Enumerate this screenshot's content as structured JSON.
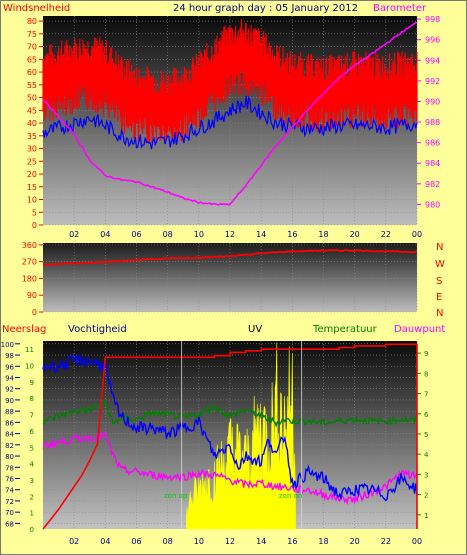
{
  "header": {
    "title": "24 hour graph day : 05 January 2012",
    "left_label": "Windsnelheid",
    "right_label": "Barometer"
  },
  "wind_dir_labels": [
    "N",
    "W",
    "S",
    "E",
    "N"
  ],
  "bottom_labels": {
    "rain": "Neerslag",
    "humidity": "Vochtigheid",
    "uv": "UV",
    "temperature": "Temperatuur",
    "dewpoint": "Dauwpunt"
  },
  "annotations": {
    "zon_op": "zon op",
    "zon_on": "zon on"
  },
  "colors": {
    "background": "#ffff99",
    "wind": "#ff0000",
    "gust": "#ff0000",
    "avg_wind": "#0000ff",
    "barometer": "#ff00ff",
    "wind_dir": "#ff0000",
    "rain": "#ff0000",
    "humidity": "#0000ff",
    "uv": "#ffff00",
    "temperature": "#008000",
    "dewpoint": "#ff00ff",
    "title": "#000080",
    "rain_label": "#ff0000"
  },
  "chart_data": [
    {
      "type": "line",
      "title": "24 hour graph day : 05 January 2012",
      "x_ticks": [
        "02",
        "04",
        "06",
        "08",
        "10",
        "12",
        "14",
        "16",
        "18",
        "20",
        "22",
        "00"
      ],
      "y_left_label": "Windsnelheid",
      "y_right_label": "Barometer",
      "y_left_ticks": [
        0,
        5,
        10,
        15,
        20,
        25,
        30,
        35,
        40,
        45,
        50,
        55,
        60,
        65,
        70,
        75,
        80
      ],
      "y_left_range": [
        0,
        82
      ],
      "y_right_ticks": [
        980,
        982,
        984,
        986,
        988,
        990,
        992,
        994,
        996,
        998
      ],
      "y_right_range": [
        978,
        998.3
      ],
      "grid": true,
      "series": [
        {
          "axis": "left",
          "x": [
            0,
            1,
            2,
            3,
            4,
            5,
            6,
            7,
            8,
            9,
            10,
            11,
            12,
            13,
            14,
            15,
            16,
            17,
            18,
            19,
            20,
            21,
            22,
            23,
            24
          ],
          "values": [
            55,
            57,
            59,
            60,
            58,
            52,
            48,
            47,
            46,
            48,
            53,
            59,
            65,
            66,
            62,
            56,
            53,
            52,
            51,
            52,
            53,
            53,
            52,
            53,
            54
          ]
        },
        {
          "axis": "left",
          "x": [
            0,
            1,
            2,
            3,
            4,
            5,
            6,
            7,
            8,
            9,
            10,
            11,
            12,
            13,
            14,
            15,
            16,
            17,
            18,
            19,
            20,
            21,
            22,
            23,
            24
          ],
          "values": [
            36,
            38,
            40,
            42,
            39,
            35,
            33,
            32,
            33,
            35,
            38,
            41,
            45,
            48,
            44,
            40,
            39,
            38,
            38,
            39,
            39,
            39,
            38,
            39,
            40
          ]
        },
        {
          "axis": "right",
          "x": [
            0,
            1,
            2,
            3,
            4,
            5,
            6,
            7,
            8,
            9,
            10,
            11,
            12,
            13,
            14,
            15,
            16,
            17,
            18,
            19,
            20,
            21,
            22,
            23,
            24
          ],
          "values": [
            990.2,
            988.5,
            986.8,
            984.3,
            982.8,
            982.4,
            982.2,
            981.7,
            981.2,
            980.6,
            980.2,
            980.0,
            980.0,
            981.8,
            983.8,
            985.8,
            987.5,
            989.2,
            990.8,
            992.3,
            993.5,
            994.5,
            995.6,
            996.7,
            997.7
          ]
        }
      ]
    },
    {
      "type": "line",
      "y_ticks": [
        0,
        90,
        180,
        270,
        360
      ],
      "y_range": [
        0,
        370
      ],
      "grid": true,
      "series": [
        {
          "x": [
            0,
            2,
            4,
            6,
            8,
            10,
            12,
            14,
            16,
            18,
            20,
            22,
            24
          ],
          "values": [
            255,
            260,
            268,
            278,
            288,
            290,
            300,
            315,
            325,
            330,
            330,
            325,
            322
          ]
        }
      ]
    },
    {
      "type": "line",
      "x_ticks": [
        "02",
        "04",
        "06",
        "08",
        "10",
        "12",
        "14",
        "16",
        "18",
        "20",
        "22",
        "00"
      ],
      "y_humidity_ticks": [
        68,
        70,
        72,
        74,
        76,
        78,
        80,
        82,
        84,
        86,
        88,
        90,
        92,
        94,
        96,
        98,
        100
      ],
      "y_humidity_range": [
        67,
        100.5
      ],
      "y_temp_ticks": [
        0,
        1,
        2,
        3,
        4,
        5,
        6,
        7,
        8,
        9,
        10,
        11
      ],
      "y_temp_range": [
        0,
        11.5
      ],
      "y_uv_ticks": [
        1,
        2,
        3,
        4,
        5,
        6,
        7,
        8,
        9
      ],
      "y_uv_range": [
        0.3,
        9.6
      ],
      "grid": true,
      "series": [
        {
          "x": [
            0,
            0.5,
            1,
            1.5,
            2,
            2.5,
            3,
            3.5,
            4,
            4.5,
            5,
            6,
            7,
            8,
            9,
            10,
            11,
            12,
            13,
            14,
            15,
            16,
            17,
            18,
            19,
            20,
            21,
            22,
            23,
            24
          ],
          "values": [
            0,
            0.6,
            1.2,
            1.9,
            2.6,
            3.3,
            4.2,
            5.2,
            10.5,
            10.5,
            10.5,
            10.5,
            10.5,
            10.5,
            10.5,
            10.5,
            10.6,
            10.8,
            10.9,
            11.0,
            11.0,
            11.0,
            11.0,
            11.0,
            11.1,
            11.2,
            11.2,
            11.3,
            11.3,
            0.0
          ]
        },
        {
          "x": [
            0,
            1,
            2,
            3,
            4,
            4.5,
            5,
            5.5,
            6,
            7,
            8,
            9,
            10,
            11,
            12,
            12.5,
            13,
            14,
            14.5,
            15,
            15.5,
            16,
            17,
            18,
            19,
            20,
            21,
            22,
            23,
            24
          ],
          "values": [
            96,
            96,
            97,
            97,
            96,
            90,
            87,
            86,
            85,
            85,
            84,
            85,
            86,
            80,
            82,
            78,
            80,
            79,
            83,
            80,
            84,
            75,
            77,
            76,
            73,
            74,
            74,
            73,
            76,
            74
          ]
        },
        {
          "x": [
            0,
            1,
            2,
            3,
            4,
            4.5,
            5,
            6,
            7,
            8,
            9,
            10,
            11,
            12,
            13,
            14,
            15,
            15.5,
            16,
            17,
            18,
            19,
            20,
            21,
            22,
            23,
            24
          ],
          "values": [
            6.6,
            6.9,
            7.2,
            7.3,
            7.8,
            6.4,
            6.8,
            6.7,
            7.1,
            7.0,
            6.8,
            7.0,
            7.5,
            6.9,
            7.3,
            6.9,
            6.5,
            6.7,
            6.6,
            6.6,
            6.5,
            6.6,
            6.7,
            6.6,
            6.6,
            6.7,
            6.6
          ]
        },
        {
          "x": [
            0,
            1,
            2,
            3,
            4,
            4.5,
            5,
            6,
            7,
            8,
            9,
            10,
            11,
            12,
            13,
            14,
            15,
            16,
            16.5,
            17,
            18,
            19,
            20,
            21,
            22,
            23,
            24
          ],
          "values": [
            5.1,
            5.3,
            5.5,
            5.6,
            5.7,
            4.5,
            3.6,
            3.5,
            3.3,
            3.2,
            3.2,
            3.4,
            3.3,
            3.0,
            2.7,
            2.8,
            2.6,
            2.5,
            2.4,
            2.4,
            2.1,
            1.9,
            1.8,
            2.2,
            2.6,
            3.4,
            3.2
          ]
        },
        {
          "x": [
            9.2,
            9.5,
            10,
            10.5,
            11,
            11.5,
            12,
            12.5,
            13,
            13.5,
            14,
            14.5,
            15,
            15.5,
            16,
            16.2
          ],
          "values": [
            1.0,
            2.0,
            2.4,
            3.0,
            3.2,
            3.8,
            4.6,
            4.4,
            4.0,
            5.0,
            6.0,
            5.2,
            7.2,
            6.0,
            7.8,
            3.0
          ]
        }
      ]
    }
  ]
}
